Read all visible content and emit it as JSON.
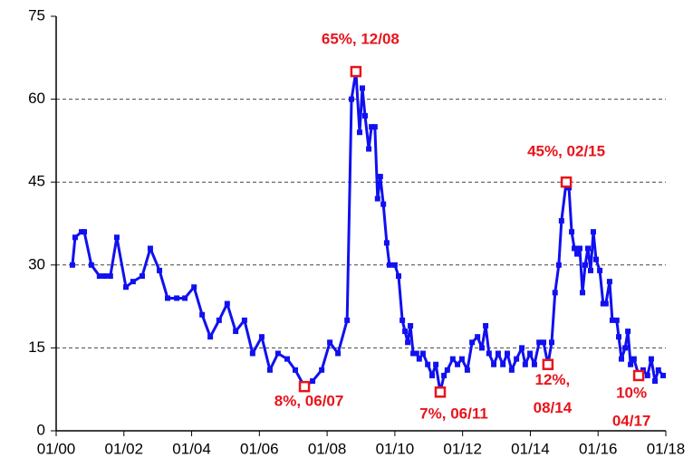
{
  "chart_data": {
    "type": "line",
    "x": [
      2000.48,
      2000.56,
      2000.75,
      2000.83,
      2001.04,
      2001.28,
      2001.44,
      2001.6,
      2001.79,
      2002.06,
      2002.27,
      2002.54,
      2002.78,
      2003.05,
      2003.29,
      2003.56,
      2003.8,
      2004.07,
      2004.31,
      2004.55,
      2004.81,
      2005.05,
      2005.3,
      2005.56,
      2005.8,
      2006.07,
      2006.31,
      2006.55,
      2006.82,
      2007.06,
      2007.33,
      2007.57,
      2007.84,
      2008.08,
      2008.32,
      2008.59,
      2008.72,
      2008.85,
      2008.96,
      2009.04,
      2009.12,
      2009.23,
      2009.31,
      2009.41,
      2009.49,
      2009.57,
      2009.66,
      2009.76,
      2009.84,
      2010.0,
      2010.11,
      2010.22,
      2010.3,
      2010.38,
      2010.46,
      2010.54,
      2010.64,
      2010.72,
      2010.83,
      2010.97,
      2011.1,
      2011.21,
      2011.34,
      2011.45,
      2011.55,
      2011.71,
      2011.85,
      2011.98,
      2012.14,
      2012.28,
      2012.44,
      2012.57,
      2012.68,
      2012.78,
      2012.92,
      2013.05,
      2013.19,
      2013.32,
      2013.45,
      2013.59,
      2013.75,
      2013.85,
      2013.99,
      2014.12,
      2014.26,
      2014.39,
      2014.52,
      2014.63,
      2014.73,
      2014.84,
      2014.92,
      2015.06,
      2015.14,
      2015.22,
      2015.3,
      2015.38,
      2015.46,
      2015.54,
      2015.62,
      2015.7,
      2015.78,
      2015.86,
      2015.94,
      2016.05,
      2016.15,
      2016.23,
      2016.34,
      2016.42,
      2016.55,
      2016.61,
      2016.69,
      2016.8,
      2016.88,
      2016.96,
      2017.06,
      2017.2,
      2017.33,
      2017.46,
      2017.57,
      2017.68,
      2017.78,
      2017.92
    ],
    "series": [
      {
        "color": "#1010f0",
        "values": [
          30,
          35,
          36,
          36,
          30,
          28,
          28,
          28,
          35,
          26,
          27,
          28,
          33,
          29,
          24,
          24,
          24,
          26,
          21,
          17,
          20,
          23,
          18,
          20,
          14,
          17,
          11,
          14,
          13,
          11,
          8,
          9,
          11,
          16,
          14,
          20,
          60,
          65,
          54,
          62,
          57,
          51,
          55,
          55,
          42,
          46,
          41,
          34,
          30,
          30,
          28,
          20,
          18,
          16,
          19,
          14,
          14,
          13,
          14,
          12,
          10,
          12,
          7,
          10,
          11,
          13,
          12,
          13,
          11,
          16,
          17,
          15,
          19,
          14,
          12,
          14,
          12,
          14,
          11,
          13,
          15,
          12,
          14,
          12,
          16,
          16,
          12,
          16,
          25,
          30,
          38,
          45,
          44,
          36,
          33,
          32,
          33,
          25,
          30,
          33,
          29,
          36,
          31,
          29,
          23,
          23,
          27,
          20,
          20,
          17,
          13,
          15,
          18,
          12,
          13,
          10,
          11,
          10,
          13,
          9,
          11,
          10
        ]
      }
    ],
    "xlim": [
      2000,
      2018
    ],
    "xticks": [
      {
        "value": 2000,
        "label": "01/00"
      },
      {
        "value": 2002,
        "label": "01/02"
      },
      {
        "value": 2004,
        "label": "01/04"
      },
      {
        "value": 2006,
        "label": "01/06"
      },
      {
        "value": 2008,
        "label": "01/08"
      },
      {
        "value": 2010,
        "label": "01/10"
      },
      {
        "value": 2012,
        "label": "01/12"
      },
      {
        "value": 2014,
        "label": "01/14"
      },
      {
        "value": 2016,
        "label": "01/16"
      },
      {
        "value": 2018,
        "label": "01/18"
      }
    ],
    "ylim": [
      0,
      75
    ],
    "yticks": [
      0,
      15,
      30,
      45,
      60,
      75
    ],
    "grid": true,
    "annotations": [
      {
        "x": 2008.85,
        "y": 65,
        "text": [
          "65%, 12/08"
        ]
      },
      {
        "x": 2015.06,
        "y": 45,
        "text": [
          "45%, 02/15"
        ]
      },
      {
        "x": 2007.33,
        "y": 8,
        "text": [
          "8%, 06/07"
        ]
      },
      {
        "x": 2011.34,
        "y": 7,
        "text": [
          "7%, 06/11"
        ]
      },
      {
        "x": 2014.52,
        "y": 12,
        "text": [
          "12%,",
          "08/14"
        ]
      },
      {
        "x": 2017.2,
        "y": 10,
        "text": [
          "10%",
          "04/17"
        ]
      }
    ],
    "annotation_color": "#e8141b"
  }
}
